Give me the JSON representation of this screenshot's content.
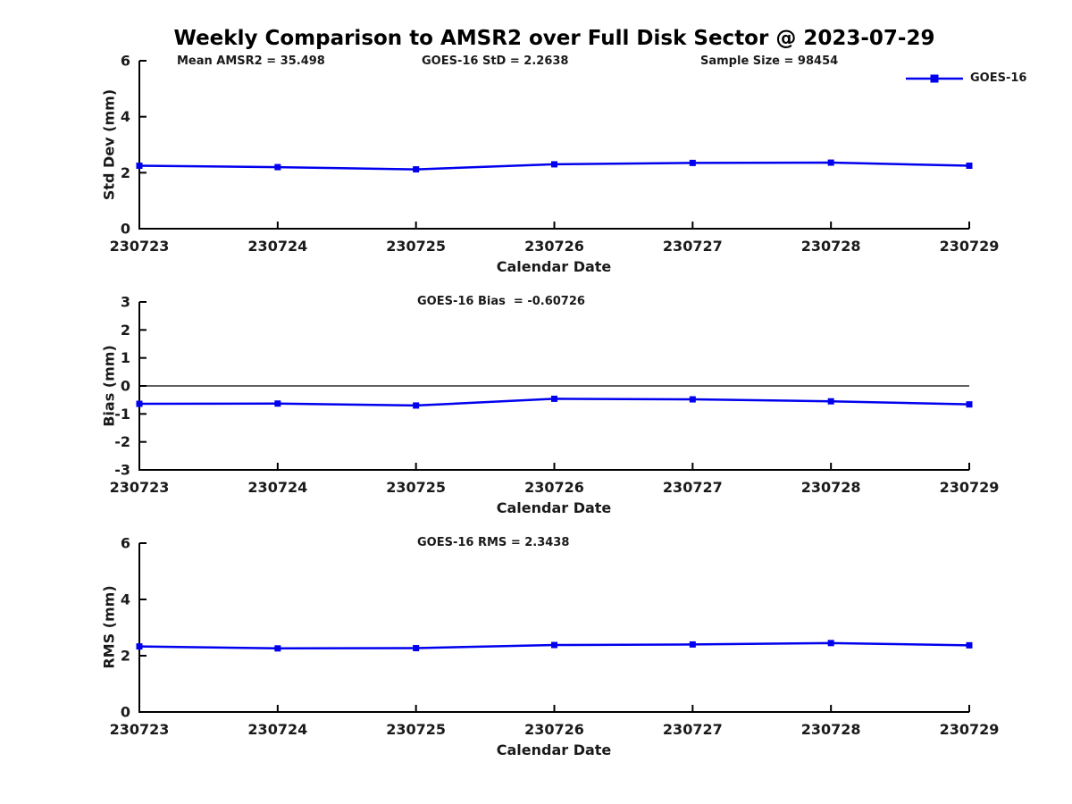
{
  "title": "Weekly Comparison to AMSR2 over Full Disk Sector @ 2023-07-29",
  "legend": {
    "label": "GOES-16",
    "color": "#0000EE"
  },
  "chart_data": [
    {
      "type": "line",
      "name": "std-dev",
      "ylabel": "Std Dev (mm)",
      "xlabel": "Calendar Date",
      "categories": [
        "230723",
        "230724",
        "230725",
        "230726",
        "230727",
        "230728",
        "230729"
      ],
      "series": [
        {
          "name": "GOES-16",
          "color": "#0000EE",
          "marker": "square",
          "values": [
            2.25,
            2.2,
            2.12,
            2.3,
            2.35,
            2.36,
            2.25
          ]
        }
      ],
      "ylim": [
        0,
        6
      ],
      "yticks": [
        0,
        2,
        4,
        6
      ],
      "grid": false,
      "zero_line": false,
      "annotations": [
        "Mean AMSR2 = 35.498",
        "GOES-16 StD = 2.2638",
        "Sample Size = 98454"
      ],
      "legend_position": "top-right"
    },
    {
      "type": "line",
      "name": "bias",
      "ylabel": "Bias (mm)",
      "xlabel": "Calendar Date",
      "categories": [
        "230723",
        "230724",
        "230725",
        "230726",
        "230727",
        "230728",
        "230729"
      ],
      "series": [
        {
          "name": "GOES-16",
          "color": "#0000EE",
          "marker": "square",
          "values": [
            -0.64,
            -0.63,
            -0.7,
            -0.46,
            -0.48,
            -0.55,
            -0.66
          ]
        }
      ],
      "ylim": [
        -3,
        3
      ],
      "yticks": [
        -3,
        -2,
        -1,
        0,
        1,
        2,
        3
      ],
      "grid": false,
      "zero_line": true,
      "annotations": [
        "GOES-16 Bias  = -0.60726"
      ]
    },
    {
      "type": "line",
      "name": "rms",
      "ylabel": "RMS (mm)",
      "xlabel": "Calendar Date",
      "categories": [
        "230723",
        "230724",
        "230725",
        "230726",
        "230727",
        "230728",
        "230729"
      ],
      "series": [
        {
          "name": "GOES-16",
          "color": "#0000EE",
          "marker": "square",
          "values": [
            2.33,
            2.26,
            2.27,
            2.38,
            2.4,
            2.45,
            2.37
          ]
        }
      ],
      "ylim": [
        0,
        6
      ],
      "yticks": [
        0,
        2,
        4,
        6
      ],
      "grid": false,
      "zero_line": false,
      "annotations": [
        "GOES-16 RMS = 2.3438"
      ]
    }
  ]
}
